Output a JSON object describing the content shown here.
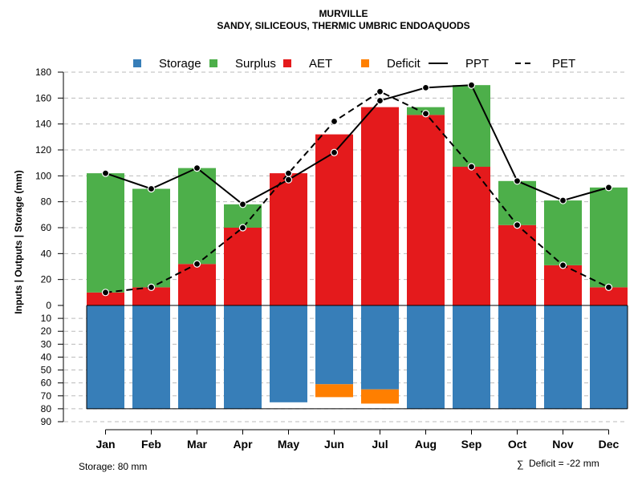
{
  "chart_data": {
    "type": "bar",
    "title": "MURVILLE",
    "subtitle": "SANDY, SILICEOUS, THERMIC UMBRIC ENDOAQUODS",
    "ylabel": "Inputs | Outputs | Storage    (mm)",
    "categories": [
      "Jan",
      "Feb",
      "Mar",
      "Apr",
      "May",
      "Jun",
      "Jul",
      "Aug",
      "Sep",
      "Oct",
      "Nov",
      "Dec"
    ],
    "upper_ylim": [
      0,
      180
    ],
    "upper_ticks": [
      "0",
      "20",
      "40",
      "60",
      "80",
      "100",
      "120",
      "140",
      "160",
      "180"
    ],
    "lower_ylim": [
      0,
      90
    ],
    "lower_ticks": [
      "10",
      "20",
      "30",
      "40",
      "50",
      "60",
      "70",
      "80",
      "90"
    ],
    "series": [
      {
        "name": "AET",
        "color": "#E41A1C",
        "values": [
          10,
          14,
          32,
          60,
          102,
          132,
          153,
          147,
          107,
          62,
          31,
          14
        ]
      },
      {
        "name": "Surplus",
        "color": "#4DAF4A",
        "values": [
          92,
          76,
          74,
          18,
          0,
          0,
          0,
          6,
          63,
          34,
          50,
          77
        ]
      },
      {
        "name": "Storage",
        "color": "#377EB8",
        "values": [
          80,
          80,
          80,
          80,
          75,
          61,
          65,
          80,
          80,
          80,
          80,
          80
        ]
      },
      {
        "name": "Deficit",
        "color": "#FF7F00",
        "values": [
          0,
          0,
          0,
          0,
          0,
          10,
          11,
          0,
          0,
          0,
          0,
          0
        ]
      },
      {
        "name": "PPT",
        "color": "#000000",
        "style": "solid",
        "values": [
          102,
          90,
          106,
          78,
          97,
          118,
          158,
          168,
          170,
          96,
          81,
          91
        ]
      },
      {
        "name": "PET",
        "color": "#000000",
        "style": "dashed",
        "values": [
          10,
          14,
          32,
          60,
          102,
          142,
          165,
          148,
          107,
          62,
          31,
          14
        ]
      }
    ],
    "legend": {
      "position": "top",
      "items": [
        {
          "label": "Storage",
          "kind": "square",
          "color": "#377EB8"
        },
        {
          "label": "Surplus",
          "kind": "square",
          "color": "#4DAF4A"
        },
        {
          "label": "AET",
          "kind": "square",
          "color": "#E41A1C"
        },
        {
          "label": "Deficit",
          "kind": "square",
          "color": "#FF7F00"
        },
        {
          "label": "PPT",
          "kind": "solid-line",
          "color": "#000000"
        },
        {
          "label": "PET",
          "kind": "dashed-line",
          "color": "#000000"
        }
      ]
    },
    "grid": true
  },
  "footer": {
    "storage_label": "Storage: 80 mm",
    "deficit_symbol": "∑",
    "deficit_label": "Deficit = -22 mm"
  }
}
